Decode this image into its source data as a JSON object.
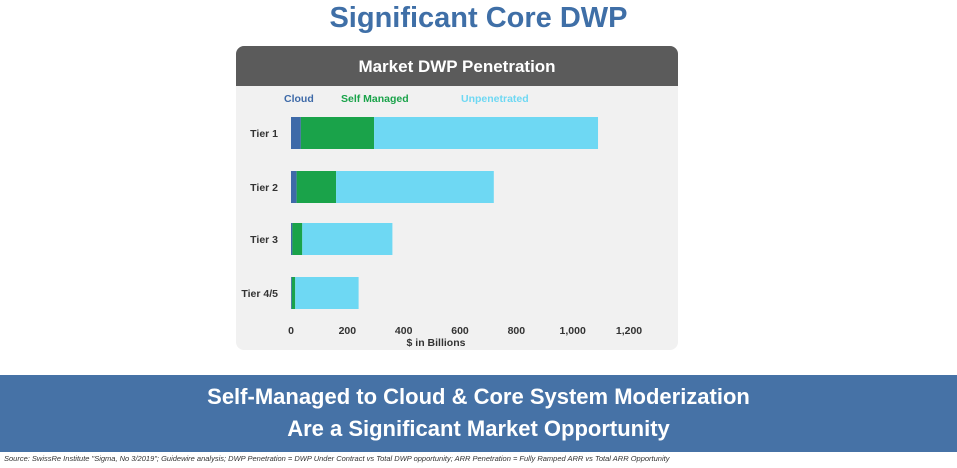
{
  "slide": {
    "title": "Significant Core DWP",
    "banner_line1": "Self-Managed to Cloud & Core System Moderization",
    "banner_line2": "Are a Significant Market Opportunity",
    "source": "Source: SwissRe Institute \"Sigma, No 3/2019\"; Guidewire analysis; DWP Penetration = DWP Under Contract vs Total DWP opportunity; ARR Penetration = Fully Ramped ARR vs Total ARR Opportunity"
  },
  "chart_data": {
    "type": "bar",
    "orientation": "horizontal",
    "stacked": true,
    "title": "Market DWP Penetration",
    "xlabel": "$ in Billions",
    "ylabel": "",
    "categories": [
      "Tier 1",
      "Tier 2",
      "Tier 3",
      "Tier 4/5"
    ],
    "series": [
      {
        "name": "Cloud",
        "color": "#3e6aa8",
        "values": [
          35,
          20,
          5,
          3
        ]
      },
      {
        "name": "Self Managed",
        "color": "#1aa34a",
        "values": [
          260,
          140,
          35,
          12
        ]
      },
      {
        "name": "Unpenetrated",
        "color": "#6ed8f3",
        "values": [
          795,
          560,
          320,
          225
        ]
      }
    ],
    "xlim": [
      0,
      1200
    ],
    "xticks": [
      0,
      200,
      400,
      600,
      800,
      1000,
      1200
    ],
    "xtick_labels": [
      "0",
      "200",
      "400",
      "600",
      "800",
      "1,000",
      "1,200"
    ],
    "legend_position": "top",
    "grid": false
  }
}
